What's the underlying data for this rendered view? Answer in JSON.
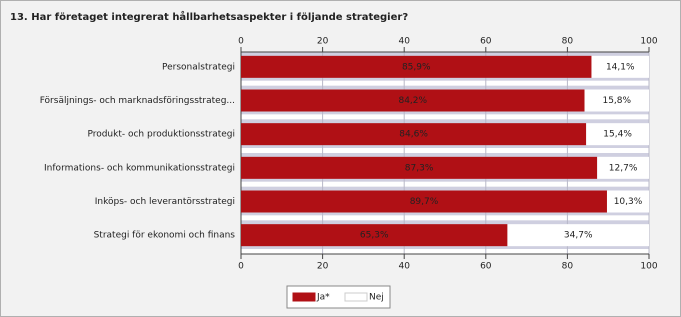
{
  "chart_data": {
    "type": "stacked-bar-horizontal",
    "title": "13. Har företaget integrerat hållbarhetsaspekter i följande strategier?",
    "categories": [
      "Personalstrategi",
      "Försäljnings- och marknadsföringsstrateg...",
      "Produkt- och produktionsstrategi",
      "Informations- och kommunikationsstrategi",
      "Inköps- och leverantörsstrategi",
      "Strategi för ekonomi och finans"
    ],
    "series": [
      {
        "name": "Ja*",
        "color": "#b01015",
        "values": [
          85.9,
          84.2,
          84.6,
          87.3,
          89.7,
          65.3
        ],
        "value_labels": [
          "85,9%",
          "84,2%",
          "84,6%",
          "87,3%",
          "89,7%",
          "65,3%"
        ]
      },
      {
        "name": "Nej",
        "color": "#ffffff",
        "values": [
          14.1,
          15.8,
          15.4,
          12.7,
          10.3,
          34.7
        ],
        "value_labels": [
          "14,1%",
          "15,8%",
          "15,4%",
          "12,7%",
          "10,3%",
          "34,7%"
        ]
      }
    ],
    "xlim": [
      0,
      100
    ],
    "xticks": [
      0,
      20,
      40,
      60,
      80,
      100
    ],
    "grid": true,
    "legend": "bottom"
  }
}
